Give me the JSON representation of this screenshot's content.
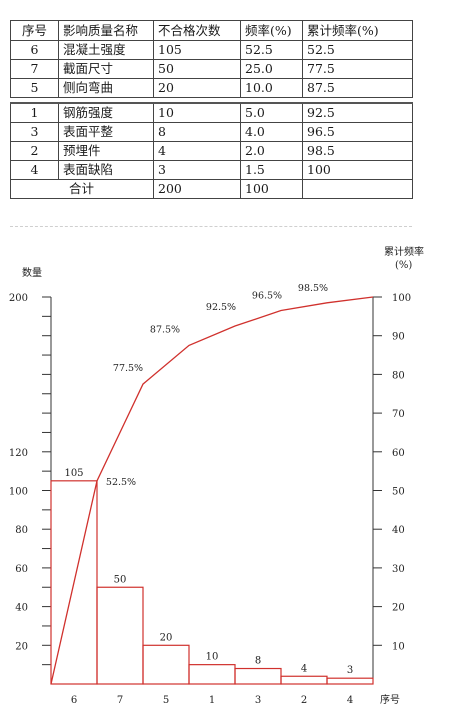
{
  "table": {
    "headers": [
      "序号",
      "影响质量名称",
      "不合格次数",
      "频率(%)",
      "累计频率(%)"
    ],
    "rows_top": [
      [
        "6",
        "混凝土强度",
        "105",
        "52.5",
        "52.5"
      ],
      [
        "7",
        "截面尺寸",
        "50",
        "25.0",
        "77.5"
      ],
      [
        "5",
        "侧向弯曲",
        "20",
        "10.0",
        "87.5"
      ]
    ],
    "rows_bottom": [
      [
        "1",
        "钢筋强度",
        "10",
        "5.0",
        "92.5"
      ],
      [
        "3",
        "表面平整",
        "8",
        "4.0",
        "96.5"
      ],
      [
        "2",
        "预埋件",
        "4",
        "2.0",
        "98.5"
      ],
      [
        "4",
        "表面缺陷",
        "3",
        "1.5",
        "100"
      ]
    ],
    "total": [
      "合计",
      "200",
      "100"
    ]
  },
  "chart_data": {
    "type": "bar",
    "categories": [
      "6",
      "7",
      "5",
      "1",
      "3",
      "2",
      "4"
    ],
    "values": [
      105,
      50,
      20,
      10,
      8,
      4,
      3
    ],
    "value_labels": [
      "105",
      "50",
      "20",
      "10",
      "8",
      "4",
      "3"
    ],
    "cumulative": [
      52.5,
      77.5,
      87.5,
      92.5,
      96.5,
      98.5,
      100
    ],
    "cumulative_labels": [
      "52.5%",
      "77.5%",
      "87.5%",
      "92.5%",
      "96.5%",
      "98.5%",
      "100"
    ],
    "ylabel_left": "数量",
    "ylabel_right": "累计频率",
    "ylabel_right_unit": "(%)",
    "xlabel": "序号",
    "left_ylim": [
      0,
      200
    ],
    "left_tick_labels": [
      "20",
      "40",
      "60",
      "80",
      "100",
      "120",
      "200"
    ],
    "right_ylim": [
      0,
      100
    ],
    "right_tick_labels": [
      "10",
      "20",
      "30",
      "40",
      "50",
      "60",
      "70",
      "80",
      "90",
      "100"
    ],
    "colors": {
      "bars": "#d0312d",
      "line": "#d0312d",
      "axis": "#333333"
    }
  }
}
